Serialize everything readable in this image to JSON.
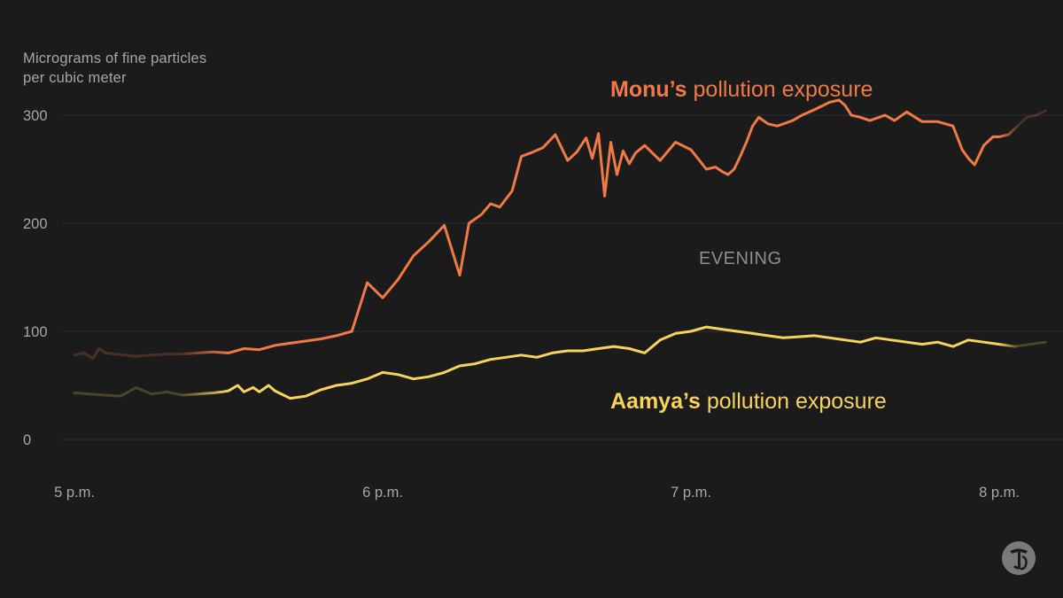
{
  "chart_data": {
    "type": "line",
    "ylabel_lines": [
      "Micrograms of fine particles",
      "per cubic meter"
    ],
    "ylim": [
      0,
      300
    ],
    "yticks": [
      0,
      100,
      200,
      300
    ],
    "ytick_labels": [
      "0",
      "100",
      "200",
      "300"
    ],
    "xlim": [
      0,
      3.15
    ],
    "xticks": [
      0,
      1,
      2,
      3
    ],
    "xtick_labels": [
      "5 p.m.",
      "6 p.m.",
      "7 p.m.",
      "8 p.m."
    ],
    "annotation": "EVENING",
    "grid": true,
    "series": [
      {
        "name_bold": "Monu’s",
        "name_rest": "pollution exposure",
        "color": "#f07a46",
        "x": [
          0.0,
          0.03,
          0.06,
          0.08,
          0.1,
          0.13,
          0.16,
          0.2,
          0.25,
          0.3,
          0.35,
          0.4,
          0.45,
          0.5,
          0.55,
          0.6,
          0.65,
          0.7,
          0.75,
          0.8,
          0.85,
          0.9,
          0.95,
          1.0,
          1.05,
          1.1,
          1.15,
          1.2,
          1.25,
          1.28,
          1.32,
          1.35,
          1.38,
          1.42,
          1.45,
          1.48,
          1.52,
          1.56,
          1.6,
          1.63,
          1.66,
          1.68,
          1.7,
          1.72,
          1.74,
          1.76,
          1.78,
          1.8,
          1.82,
          1.85,
          1.9,
          1.95,
          2.0,
          2.05,
          2.08,
          2.1,
          2.12,
          2.14,
          2.16,
          2.18,
          2.2,
          2.22,
          2.25,
          2.28,
          2.3,
          2.33,
          2.36,
          2.4,
          2.45,
          2.48,
          2.5,
          2.52,
          2.55,
          2.58,
          2.6,
          2.63,
          2.66,
          2.7,
          2.75,
          2.8,
          2.85,
          2.88,
          2.9,
          2.92,
          2.95,
          2.98,
          3.0,
          3.03,
          3.06,
          3.09,
          3.12,
          3.15
        ],
        "y": [
          78,
          80,
          75,
          84,
          80,
          79,
          78,
          77,
          78,
          79,
          79,
          80,
          81,
          80,
          84,
          83,
          87,
          89,
          91,
          93,
          96,
          100,
          145,
          131,
          148,
          170,
          183,
          198,
          152,
          200,
          208,
          218,
          215,
          230,
          262,
          265,
          270,
          282,
          258,
          266,
          279,
          260,
          283,
          225,
          275,
          245,
          267,
          255,
          265,
          272,
          258,
          275,
          268,
          250,
          252,
          248,
          245,
          250,
          262,
          275,
          290,
          298,
          292,
          290,
          292,
          295,
          300,
          305,
          312,
          314,
          309,
          300,
          298,
          295,
          297,
          300,
          295,
          303,
          294,
          294,
          290,
          268,
          260,
          254,
          272,
          280,
          280,
          282,
          290,
          298,
          300,
          304
        ],
        "solid_start": 0.5,
        "solid_end": 3.0
      },
      {
        "name_bold": "Aamya’s",
        "name_rest": "pollution exposure",
        "color": "#f7d25d",
        "x": [
          0.0,
          0.05,
          0.1,
          0.15,
          0.2,
          0.25,
          0.3,
          0.35,
          0.4,
          0.45,
          0.48,
          0.5,
          0.53,
          0.55,
          0.58,
          0.6,
          0.63,
          0.65,
          0.7,
          0.75,
          0.8,
          0.85,
          0.9,
          0.95,
          1.0,
          1.05,
          1.1,
          1.15,
          1.2,
          1.25,
          1.3,
          1.35,
          1.4,
          1.45,
          1.5,
          1.55,
          1.6,
          1.65,
          1.7,
          1.75,
          1.8,
          1.85,
          1.9,
          1.95,
          2.0,
          2.05,
          2.1,
          2.15,
          2.2,
          2.25,
          2.3,
          2.35,
          2.4,
          2.45,
          2.5,
          2.55,
          2.6,
          2.65,
          2.7,
          2.75,
          2.8,
          2.85,
          2.9,
          2.95,
          3.0,
          3.05,
          3.1,
          3.15
        ],
        "y": [
          43,
          42,
          41,
          40,
          48,
          42,
          44,
          41,
          42,
          43,
          44,
          45,
          50,
          44,
          48,
          44,
          50,
          45,
          38,
          40,
          46,
          50,
          52,
          56,
          62,
          60,
          56,
          58,
          62,
          68,
          70,
          74,
          76,
          78,
          76,
          80,
          82,
          82,
          84,
          86,
          84,
          80,
          92,
          98,
          100,
          104,
          102,
          100,
          98,
          96,
          94,
          95,
          96,
          94,
          92,
          90,
          94,
          92,
          90,
          88,
          90,
          86,
          92,
          90,
          88,
          86,
          88,
          90
        ],
        "solid_start": 0.5,
        "solid_end": 3.0
      }
    ]
  }
}
